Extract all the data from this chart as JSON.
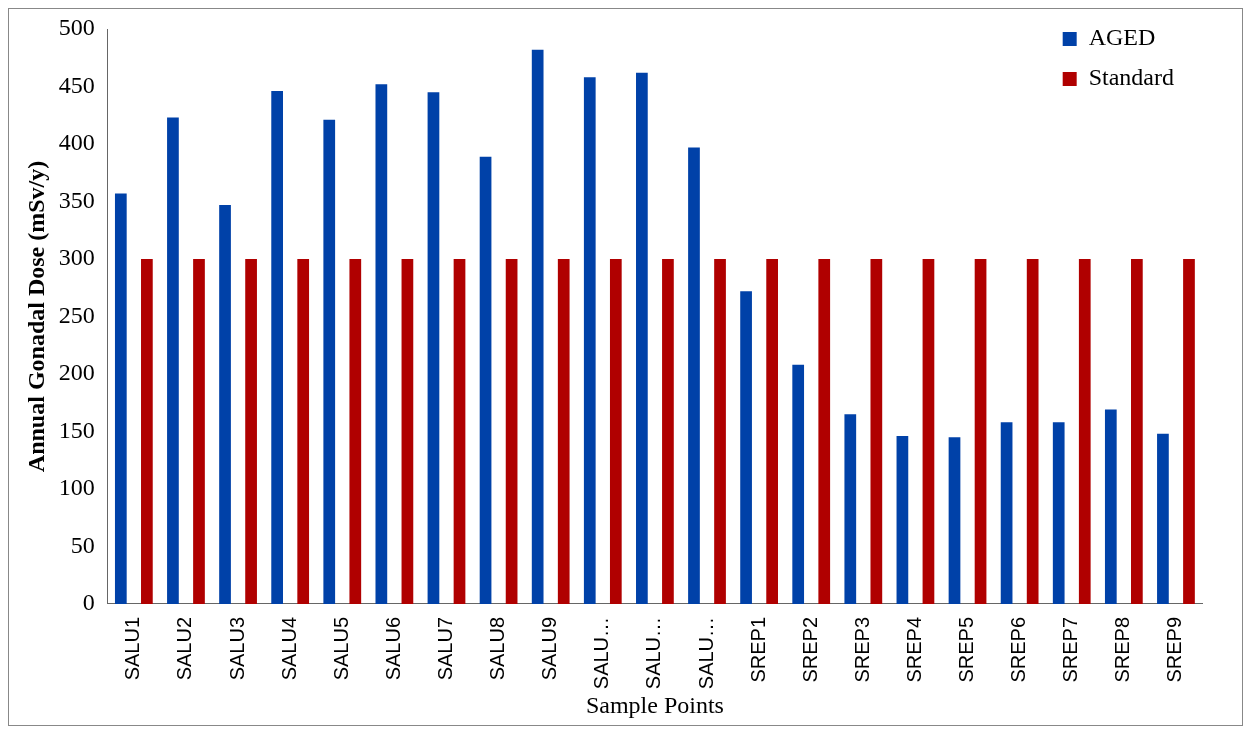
{
  "chart_data": {
    "type": "bar",
    "xlabel": "Sample Points",
    "ylabel": "Annual Gonadal Dose (mSv/y)",
    "categories": [
      "SALU1",
      "SALU2",
      "SALU3",
      "SALU4",
      "SALU5",
      "SALU6",
      "SALU7",
      "SALU8",
      "SALU9",
      "SALU…",
      "SALU…",
      "SALU…",
      "SREP1",
      "SREP2",
      "SREP3",
      "SREP4",
      "SREP5",
      "SREP6",
      "SREP7",
      "SREP8",
      "SREP9"
    ],
    "series": [
      {
        "name": "AGED",
        "color": "#0041a8",
        "values": [
          357,
          423,
          347,
          446,
          421,
          452,
          445,
          389,
          482,
          458,
          462,
          397,
          272,
          208,
          165,
          146,
          145,
          158,
          158,
          169,
          148
        ]
      },
      {
        "name": "Standard",
        "color": "#b00000",
        "values": [
          300,
          300,
          300,
          300,
          300,
          300,
          300,
          300,
          300,
          300,
          300,
          300,
          300,
          300,
          300,
          300,
          300,
          300,
          300,
          300,
          300
        ]
      }
    ],
    "ylim": [
      0,
      500
    ],
    "yticks": [
      0,
      50,
      100,
      150,
      200,
      250,
      300,
      350,
      400,
      450,
      500
    ],
    "grid": false,
    "legend": "top right"
  }
}
